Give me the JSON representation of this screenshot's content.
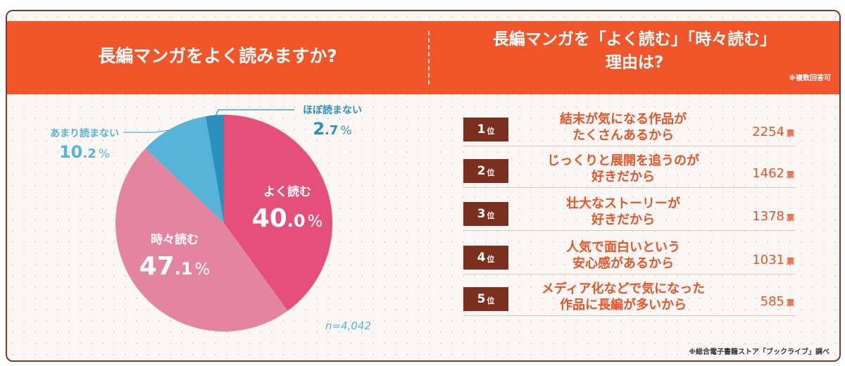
{
  "left_title": "長編マンガをよく読みますか?",
  "right_title": "長編マンガを「よく読む」「時々読む」理由は?",
  "right_note": "※複数回答可",
  "sample_size": "n=4,042",
  "colors": {
    "banner": "#f0562a",
    "often": "#e5507b",
    "sometimes": "#e385a0",
    "rarely": "#57b3d8",
    "almost_never": "#2a90be",
    "accent_text": "#e6552a",
    "rank_badge": "#7a2f1f"
  },
  "chart_data": [
    {
      "type": "pie",
      "title": "長編マンガをよく読みますか?",
      "labels": [
        "よく読む",
        "時々読む",
        "あまり読まない",
        "ほぼ読まない"
      ],
      "values": [
        40.0,
        47.1,
        10.2,
        2.7
      ],
      "value_text": [
        [
          "40",
          ".0",
          "%"
        ],
        [
          "47",
          ".1",
          "%"
        ],
        [
          "10",
          ".2",
          "%"
        ],
        [
          "2",
          ".7",
          "%"
        ]
      ]
    },
    {
      "type": "table",
      "title": "長編マンガを「よく読む」「時々読む」理由は?",
      "rows": [
        {
          "rank": "1",
          "rank_suffix": "位",
          "reason_lines": [
            "結末が気になる作品が",
            "たくさんあるから"
          ],
          "votes": 2254,
          "unit": "票"
        },
        {
          "rank": "2",
          "rank_suffix": "位",
          "reason_lines": [
            "じっくりと展開を追うのが",
            "好きだから"
          ],
          "votes": 1462,
          "unit": "票"
        },
        {
          "rank": "3",
          "rank_suffix": "位",
          "reason_lines": [
            "壮大なストーリーが",
            "好きだから"
          ],
          "votes": 1378,
          "unit": "票"
        },
        {
          "rank": "4",
          "rank_suffix": "位",
          "reason_lines": [
            "人気で面白いという",
            "安心感があるから"
          ],
          "votes": 1031,
          "unit": "票"
        },
        {
          "rank": "5",
          "rank_suffix": "位",
          "reason_lines": [
            "メディア化などで気になった",
            "作品に長編が多いから"
          ],
          "votes": 585,
          "unit": "票"
        }
      ]
    }
  ],
  "source": "※総合電子書籍ストア「ブックライブ」調べ"
}
